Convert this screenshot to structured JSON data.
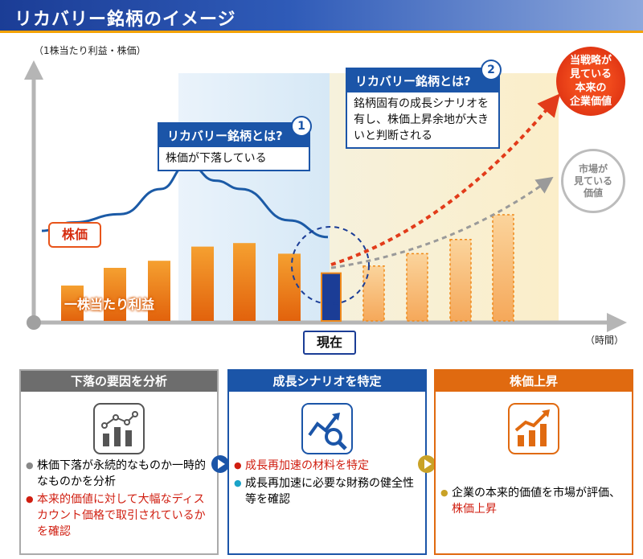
{
  "header": {
    "title": "リカバリー銘柄のイメージ"
  },
  "chart": {
    "y_axis_label": "（1株当たり利益・株価）",
    "x_axis_label": "（時間）",
    "now_label": "現在",
    "stock_price_label": "株価",
    "eps_label": "一株当たり利益",
    "strategy_view": "当戦略が\n見ている\n本来の\n企業価値",
    "market_view": "市場が\n見ている\n価値"
  },
  "callout1": {
    "title": "リカバリー銘柄とは?",
    "number": "1",
    "text": "株価が下落している"
  },
  "callout2": {
    "title": "リカバリー銘柄とは?",
    "number": "2",
    "text": "銘柄固有の成長シナリオを有し、株価上昇余地が大きいと判断される"
  },
  "chart_data": {
    "type": "bar",
    "eps_bars_actual": [
      2,
      3,
      3.4,
      4.2,
      4.4,
      3.8,
      2.7
    ],
    "eps_bars_projected": [
      3.1,
      3.8,
      4.6,
      6.0
    ],
    "stock_price_line": [
      3.0,
      3.4,
      3.8,
      5.0,
      6.2,
      5.4,
      5.0,
      3.5,
      2.7
    ],
    "series": [
      {
        "name": "株価",
        "color": "#1b5aa6"
      },
      {
        "name": "一株当たり利益",
        "color": "#f08a1a"
      }
    ]
  },
  "panels": [
    {
      "title": "下落の要因を分析",
      "color": "#6d6d6d",
      "items": [
        {
          "text": "株価下落が永続的なものか一時的なものかを分析",
          "style": "gray"
        },
        {
          "text": "本来的価値に対して大幅なディスカウント価格で取引されているかを確認",
          "style": "red"
        }
      ]
    },
    {
      "title": "成長シナリオを特定",
      "color": "#1b55a8",
      "items": [
        {
          "text": "成長再加速の材料を特定",
          "style": "red"
        },
        {
          "text": "成長再加速に必要な財務の健全性等を確認",
          "style": "cyan"
        }
      ]
    },
    {
      "title": "株価上昇",
      "color": "#e06a10",
      "items": [
        {
          "text": "企業の本来的価値を市場が評価、",
          "style": "gold",
          "highlight": "株価上昇"
        }
      ]
    }
  ],
  "icons": [
    "analysis-chart-icon",
    "trend-search-icon",
    "rising-bar-chart-icon",
    "play-arrow-icon"
  ]
}
